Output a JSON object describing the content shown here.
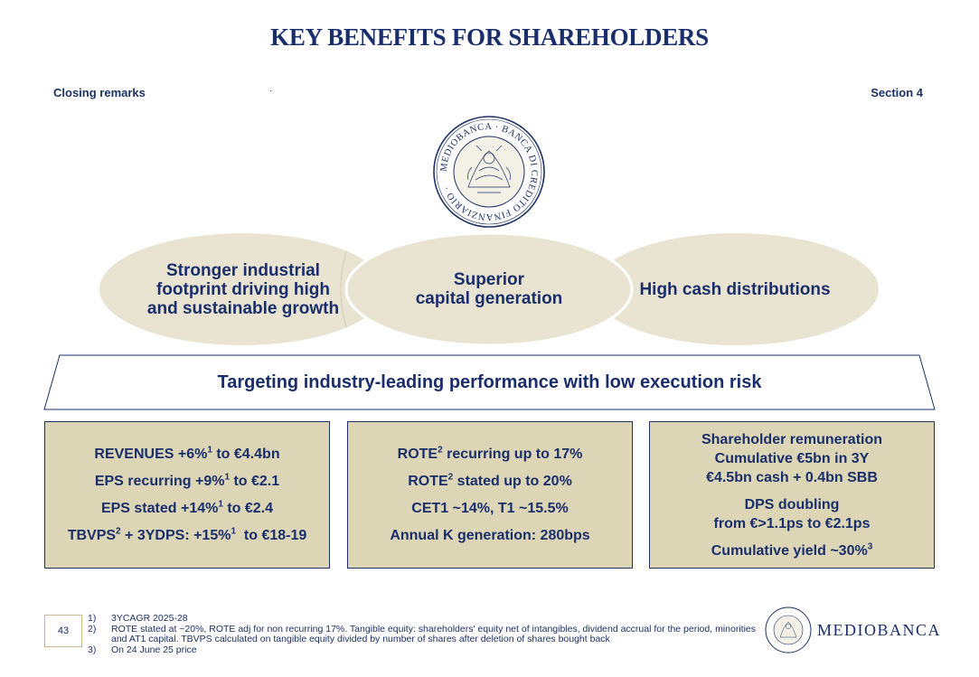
{
  "header": {
    "title": "KEY BENEFITS FOR SHAREHOLDERS",
    "section_left": "Closing remarks",
    "section_right": "Section 4"
  },
  "seal": {
    "text": "MEDIOBANCA · BANCA DI CREDITO FINANZIARIO ·",
    "color": "#1d3164"
  },
  "pillars": [
    {
      "lines": [
        "Stronger industrial",
        "footprint driving high",
        "and sustainable growth"
      ]
    },
    {
      "lines": [
        "Superior",
        "capital generation"
      ]
    },
    {
      "lines": [
        "High cash distributions"
      ]
    }
  ],
  "banner": {
    "text": "Targeting industry-leading performance with low execution risk"
  },
  "boxes": [
    {
      "lines": [
        {
          "pre": "REVENUES +6%",
          "sup": "1",
          "post": " to €4.4bn"
        },
        {
          "pre": "EPS recurring +9%",
          "sup": "1",
          "post": " to €2.1"
        },
        {
          "pre": "EPS stated +14%",
          "sup": "1",
          "post": " to €2.4"
        },
        {
          "pre": "TBVPS",
          "sup": "2",
          "mid": " + 3YDPS: +15%",
          "sup2": "1",
          "post": "  to €18-19"
        }
      ]
    },
    {
      "lines": [
        {
          "pre": "ROTE",
          "sup": "2",
          "post": " recurring up to 17%"
        },
        {
          "pre": "ROTE",
          "sup": "2",
          "post": " stated up to 20%"
        },
        {
          "text": "CET1 ~14%, T1 ~15.5%"
        },
        {
          "text": "Annual K generation: 280bps"
        }
      ]
    },
    {
      "lines": [
        {
          "text": "Shareholder remuneration"
        },
        {
          "text": "Cumulative €5bn in 3Y"
        },
        {
          "text": "€4.5bn cash + 0.4bn SBB"
        },
        {
          "text": "DPS doubling"
        },
        {
          "text": "from €>1.1ps to €2.1ps"
        },
        {
          "pre": "Cumulative yield ~30%",
          "sup": "3"
        }
      ]
    }
  ],
  "footer": {
    "page_number": "43",
    "footnotes": [
      {
        "num": "1)",
        "text": "3YCAGR 2025-28"
      },
      {
        "num": "2)",
        "text": "ROTE stated at ~20%, ROTE adj for non recurring 17%.  Tangible equity: shareholders' equity net of intangibles, dividend accrual for the period, minorities and AT1 capital. TBVPS calculated on tangible equity divided by number of shares after deletion of shares bought back"
      },
      {
        "num": "3)",
        "text": "On  24 June 25 price"
      }
    ],
    "logo_text": "MEDIOBANCA"
  },
  "colors": {
    "navy": "#1a2e6b",
    "beige": "#e9e4d2",
    "box_fill": "#dcd6b6",
    "gold_border": "#c9b98c"
  }
}
